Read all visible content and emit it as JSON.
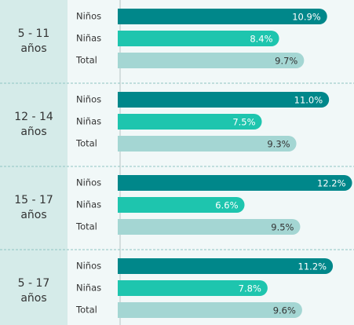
{
  "chart_data": {
    "type": "bar",
    "orientation": "horizontal",
    "categories": [
      "5 - 11 años",
      "12 - 14 años",
      "15 - 17 años",
      "5 - 17 años"
    ],
    "series": [
      {
        "name": "Niños",
        "color": "#00878a",
        "values": [
          10.9,
          11.0,
          12.2,
          11.2
        ],
        "value_labels": [
          "10.9%",
          "11.0%",
          "12.2%",
          "11.2%"
        ]
      },
      {
        "name": "Niñas",
        "color": "#1ec5ae",
        "values": [
          8.4,
          7.5,
          6.6,
          7.8
        ],
        "value_labels": [
          "8.4%",
          "7.5%",
          "6.6%",
          "7.8%"
        ]
      },
      {
        "name": "Total",
        "color": "#a4d6d3",
        "values": [
          9.7,
          9.3,
          9.5,
          9.6
        ],
        "value_labels": [
          "9.7%",
          "9.3%",
          "9.5%",
          "9.6%"
        ]
      }
    ],
    "xlim": [
      0,
      12.3
    ]
  }
}
